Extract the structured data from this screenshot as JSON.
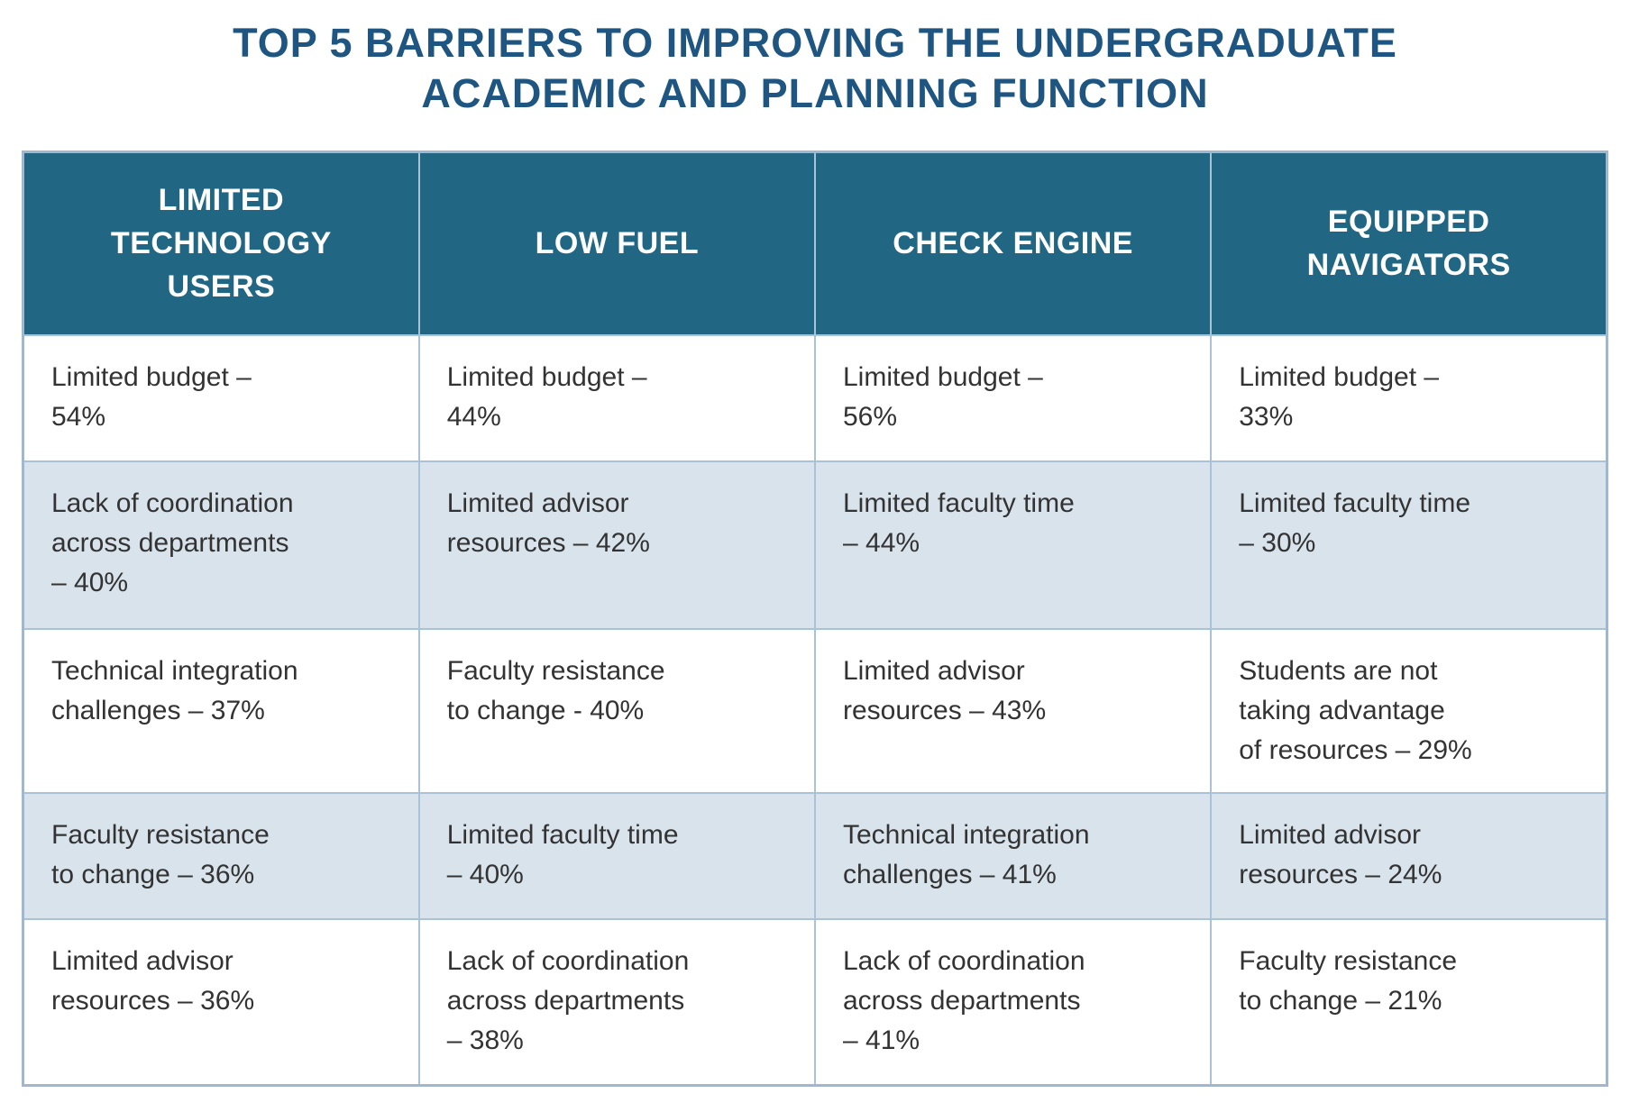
{
  "page_title": "TOP 5 BARRIERS TO IMPROVING THE UNDERGRADUATE\nACADEMIC AND PLANNING FUNCTION",
  "colors": {
    "title_text": "#1E5581",
    "header_bg": "#216784",
    "header_text": "#FFFFFF",
    "row_bg": "#FFFFFF",
    "row_alt_bg": "#D9E3EC",
    "border": "#A9C2D8",
    "outer_border": "#9FB8D0",
    "body_text": "#333333"
  },
  "table": {
    "columns": [
      "LIMITED\nTECHNOLOGY\nUSERS",
      "LOW FUEL",
      "CHECK ENGINE",
      "EQUIPPED\nNAVIGATORS"
    ],
    "rows": [
      [
        "Limited budget –\n54%",
        "Limited budget –\n44%",
        "Limited budget –\n56%",
        "Limited budget –\n33%"
      ],
      [
        "Lack of coordination\nacross departments\n– 40%",
        "Limited advisor\nresources – 42%",
        "Limited faculty time\n– 44%",
        "Limited faculty time\n– 30%"
      ],
      [
        "Technical integration\nchallenges – 37%",
        "Faculty resistance\nto change - 40%",
        "Limited advisor\nresources – 43%",
        "Students are not\ntaking advantage\nof resources – 29%"
      ],
      [
        "Faculty resistance\nto change – 36%",
        "Limited faculty time\n– 40%",
        "Technical integration\nchallenges – 41%",
        "Limited advisor\nresources – 24%"
      ],
      [
        "Limited advisor\nresources – 36%",
        "Lack of coordination\nacross departments\n– 38%",
        "Lack of coordination\nacross departments\n– 41%",
        "Faculty resistance\nto change – 21%"
      ]
    ]
  },
  "chart_data": {
    "type": "table",
    "title": "TOP 5 BARRIERS TO IMPROVING THE UNDERGRADUATE ACADEMIC AND PLANNING FUNCTION",
    "columns": [
      "LIMITED TECHNOLOGY USERS",
      "LOW FUEL",
      "CHECK ENGINE",
      "EQUIPPED NAVIGATORS"
    ],
    "series": [
      {
        "name": "LIMITED TECHNOLOGY USERS",
        "values": [
          {
            "barrier": "Limited budget",
            "pct": 54
          },
          {
            "barrier": "Lack of coordination across departments",
            "pct": 40
          },
          {
            "barrier": "Technical integration challenges",
            "pct": 37
          },
          {
            "barrier": "Faculty resistance to change",
            "pct": 36
          },
          {
            "barrier": "Limited advisor resources",
            "pct": 36
          }
        ]
      },
      {
        "name": "LOW FUEL",
        "values": [
          {
            "barrier": "Limited budget",
            "pct": 44
          },
          {
            "barrier": "Limited advisor resources",
            "pct": 42
          },
          {
            "barrier": "Faculty resistance to change",
            "pct": 40
          },
          {
            "barrier": "Limited faculty time",
            "pct": 40
          },
          {
            "barrier": "Lack of coordination across departments",
            "pct": 38
          }
        ]
      },
      {
        "name": "CHECK ENGINE",
        "values": [
          {
            "barrier": "Limited budget",
            "pct": 56
          },
          {
            "barrier": "Limited faculty time",
            "pct": 44
          },
          {
            "barrier": "Limited advisor resources",
            "pct": 43
          },
          {
            "barrier": "Technical integration challenges",
            "pct": 41
          },
          {
            "barrier": "Lack of coordination across departments",
            "pct": 41
          }
        ]
      },
      {
        "name": "EQUIPPED NAVIGATORS",
        "values": [
          {
            "barrier": "Limited budget",
            "pct": 33
          },
          {
            "barrier": "Limited faculty time",
            "pct": 30
          },
          {
            "barrier": "Students are not taking advantage of resources",
            "pct": 29
          },
          {
            "barrier": "Limited advisor resources",
            "pct": 24
          },
          {
            "barrier": "Faculty resistance to change",
            "pct": 21
          }
        ]
      }
    ]
  }
}
